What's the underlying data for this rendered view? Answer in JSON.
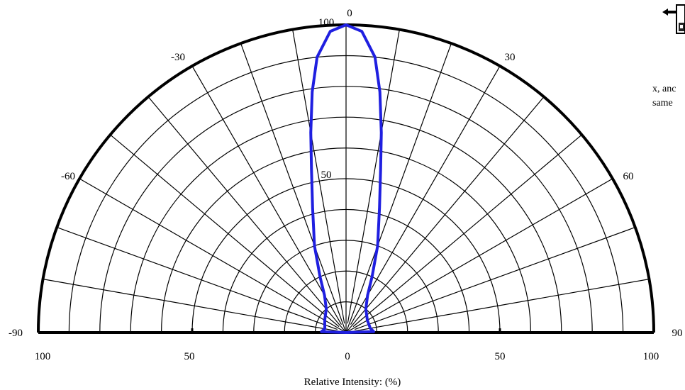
{
  "chart_data": {
    "type": "polar",
    "xlabel": "Relative Intensity: (%)",
    "angle_ticks": [
      "-90",
      "-60",
      "-30",
      "0",
      "30",
      "60",
      "90"
    ],
    "radial_ticks_left": [
      "100",
      "50",
      "0"
    ],
    "radial_ticks_right": [
      "50",
      "100"
    ],
    "radial_marks_on_axis": [
      "100",
      "50"
    ],
    "angle_range": [
      -90,
      90
    ],
    "radius_range": [
      0,
      100
    ],
    "grid": true,
    "series": [
      {
        "color": "#1f1fe0",
        "points": [
          {
            "angle": -88,
            "r": 8
          },
          {
            "angle": -80,
            "r": 7
          },
          {
            "angle": -60,
            "r": 8
          },
          {
            "angle": -40,
            "r": 10
          },
          {
            "angle": -30,
            "r": 14
          },
          {
            "angle": -25,
            "r": 20
          },
          {
            "angle": -20,
            "r": 30
          },
          {
            "angle": -15,
            "r": 42
          },
          {
            "angle": -12,
            "r": 54
          },
          {
            "angle": -10,
            "r": 66
          },
          {
            "angle": -8,
            "r": 79
          },
          {
            "angle": -6,
            "r": 90
          },
          {
            "angle": -3,
            "r": 98
          },
          {
            "angle": 0,
            "r": 100
          },
          {
            "angle": 3,
            "r": 98
          },
          {
            "angle": 6,
            "r": 90
          },
          {
            "angle": 8,
            "r": 79
          },
          {
            "angle": 10,
            "r": 66
          },
          {
            "angle": 12,
            "r": 54
          },
          {
            "angle": 15,
            "r": 42
          },
          {
            "angle": 20,
            "r": 30
          },
          {
            "angle": 25,
            "r": 20
          },
          {
            "angle": 30,
            "r": 14
          },
          {
            "angle": 40,
            "r": 10
          },
          {
            "angle": 60,
            "r": 8
          },
          {
            "angle": 80,
            "r": 8
          },
          {
            "angle": 88,
            "r": 9
          }
        ]
      }
    ]
  },
  "side_panel": {
    "line1": "x, anc",
    "line2": "same"
  },
  "icons": {
    "top_right": "move-cursor-icon"
  }
}
